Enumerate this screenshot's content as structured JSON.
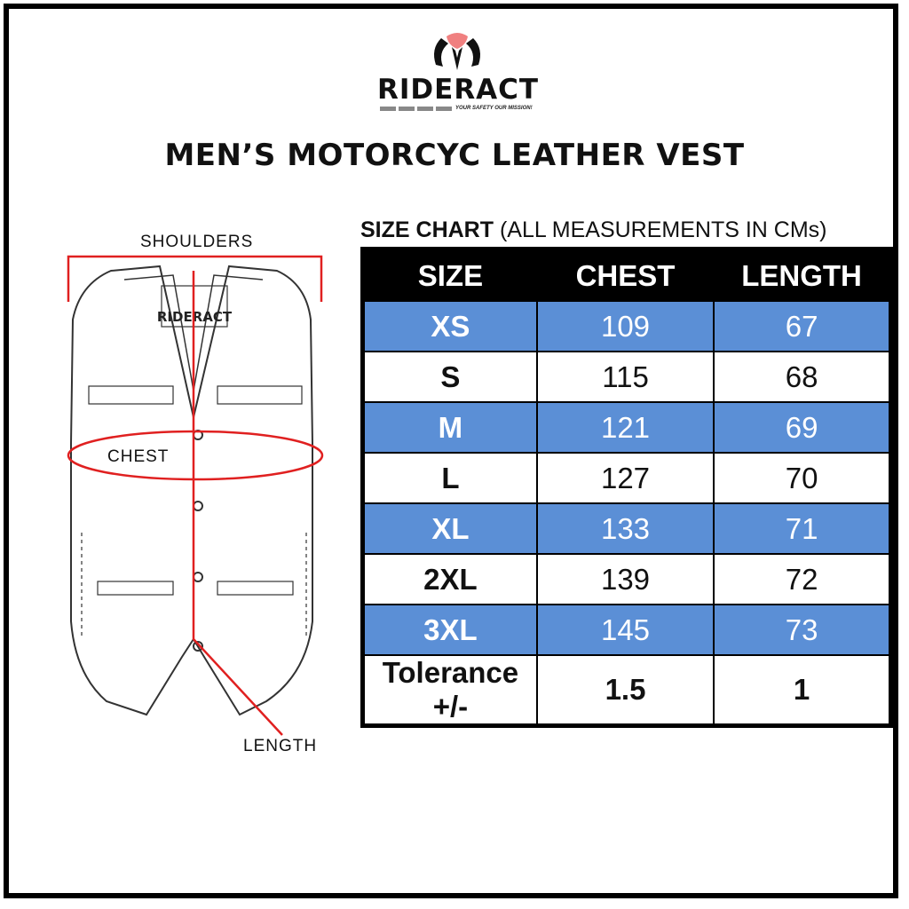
{
  "logo": {
    "brand": "RIDERACT",
    "tagline": "YOUR SAFETY OUR MISSION!"
  },
  "title": "MEN’S MOTORCYC LEATHER VEST",
  "diagram": {
    "shoulders_label": "SHOULDERS",
    "chest_label": "CHEST",
    "length_label": "LENGTH",
    "vest_tag": "RIDERACT",
    "measure_color": "#e02020"
  },
  "size_chart": {
    "heading": "SIZE CHART",
    "subheading": "(ALL MEASUREMENTS IN CMs)",
    "columns": [
      "SIZE",
      "CHEST",
      "LENGTH"
    ],
    "rows": [
      {
        "size": "XS",
        "chest": "109",
        "length": "67"
      },
      {
        "size": "S",
        "chest": "115",
        "length": "68"
      },
      {
        "size": "M",
        "chest": "121",
        "length": "69"
      },
      {
        "size": "L",
        "chest": "127",
        "length": "70"
      },
      {
        "size": "XL",
        "chest": "133",
        "length": "71"
      },
      {
        "size": "2XL",
        "chest": "139",
        "length": "72"
      },
      {
        "size": "3XL",
        "chest": "145",
        "length": "73"
      },
      {
        "size": "Tolerance +/-",
        "chest": "1.5",
        "length": "1"
      }
    ],
    "row_colors": {
      "highlight": "#5b8fd6",
      "plain": "#ffffff",
      "header": "#000000"
    }
  }
}
